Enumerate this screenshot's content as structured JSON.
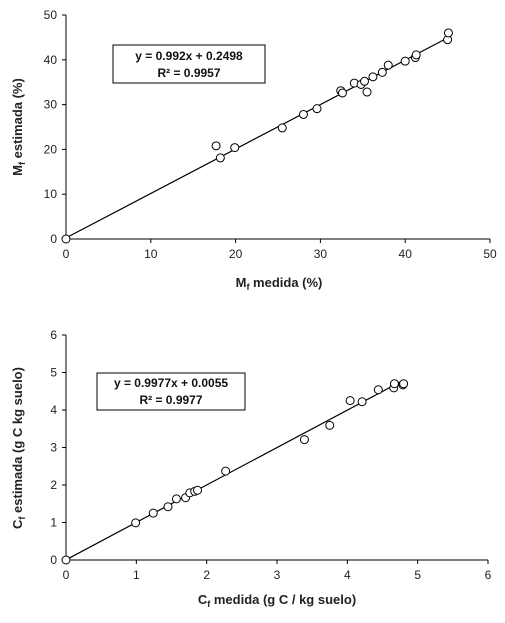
{
  "chart_data": [
    {
      "type": "scatter",
      "xlabel": {
        "main": "M",
        "sub": "f",
        "rest": " medida (%)"
      },
      "ylabel": {
        "main": "M",
        "sub": "f",
        "rest": " estimada (%)"
      },
      "xlim": [
        0,
        50
      ],
      "ylim": [
        0,
        50
      ],
      "xticks": [
        0,
        10,
        20,
        30,
        40,
        50
      ],
      "yticks": [
        0,
        10,
        20,
        30,
        40,
        50
      ],
      "grid": false,
      "equation": "y = 0.992x + 0.2498",
      "r2": "R² = 0.9957",
      "trendline": {
        "slope": 0.992,
        "intercept": 0.2498,
        "x_range": [
          0,
          45
        ]
      },
      "points": [
        {
          "x": 0,
          "y": 0
        },
        {
          "x": 17.7,
          "y": 20.8
        },
        {
          "x": 18.2,
          "y": 18.1
        },
        {
          "x": 19.9,
          "y": 20.4
        },
        {
          "x": 25.5,
          "y": 24.8
        },
        {
          "x": 28.0,
          "y": 27.8
        },
        {
          "x": 29.6,
          "y": 29.1
        },
        {
          "x": 32.4,
          "y": 33.1
        },
        {
          "x": 32.6,
          "y": 32.6
        },
        {
          "x": 34.0,
          "y": 34.8
        },
        {
          "x": 34.8,
          "y": 34.5
        },
        {
          "x": 35.2,
          "y": 35.2
        },
        {
          "x": 35.5,
          "y": 32.8
        },
        {
          "x": 36.2,
          "y": 36.2
        },
        {
          "x": 37.3,
          "y": 37.2
        },
        {
          "x": 38.0,
          "y": 38.8
        },
        {
          "x": 40.0,
          "y": 39.7
        },
        {
          "x": 41.2,
          "y": 40.5
        },
        {
          "x": 41.3,
          "y": 41.1
        },
        {
          "x": 45.0,
          "y": 44.5
        },
        {
          "x": 45.1,
          "y": 46.0
        }
      ]
    },
    {
      "type": "scatter",
      "xlabel": {
        "main": "C",
        "sub": "f",
        "rest": " medida (g C / kg suelo)"
      },
      "ylabel": {
        "main": "C",
        "sub": "f",
        "rest": " estimada (g C kg suelo)"
      },
      "xlim": [
        0,
        6
      ],
      "ylim": [
        0,
        6
      ],
      "xticks": [
        0,
        1,
        2,
        3,
        4,
        5,
        6
      ],
      "yticks": [
        0,
        1,
        2,
        3,
        4,
        5,
        6
      ],
      "grid": false,
      "equation": "y = 0.9977x + 0.0055",
      "r2": "R² = 0.9977",
      "trendline": {
        "slope": 0.9977,
        "intercept": 0.0055,
        "x_range": [
          0,
          4.8
        ]
      },
      "points": [
        {
          "x": 0,
          "y": 0
        },
        {
          "x": 0.99,
          "y": 0.99
        },
        {
          "x": 1.24,
          "y": 1.25
        },
        {
          "x": 1.45,
          "y": 1.42
        },
        {
          "x": 1.57,
          "y": 1.63
        },
        {
          "x": 1.7,
          "y": 1.66
        },
        {
          "x": 1.76,
          "y": 1.79
        },
        {
          "x": 1.83,
          "y": 1.83
        },
        {
          "x": 1.87,
          "y": 1.86
        },
        {
          "x": 2.27,
          "y": 2.37
        },
        {
          "x": 3.39,
          "y": 3.21
        },
        {
          "x": 3.75,
          "y": 3.59
        },
        {
          "x": 4.04,
          "y": 4.25
        },
        {
          "x": 4.21,
          "y": 4.22
        },
        {
          "x": 4.44,
          "y": 4.54
        },
        {
          "x": 4.66,
          "y": 4.59
        },
        {
          "x": 4.67,
          "y": 4.7
        },
        {
          "x": 4.79,
          "y": 4.67
        },
        {
          "x": 4.8,
          "y": 4.7
        }
      ]
    }
  ]
}
